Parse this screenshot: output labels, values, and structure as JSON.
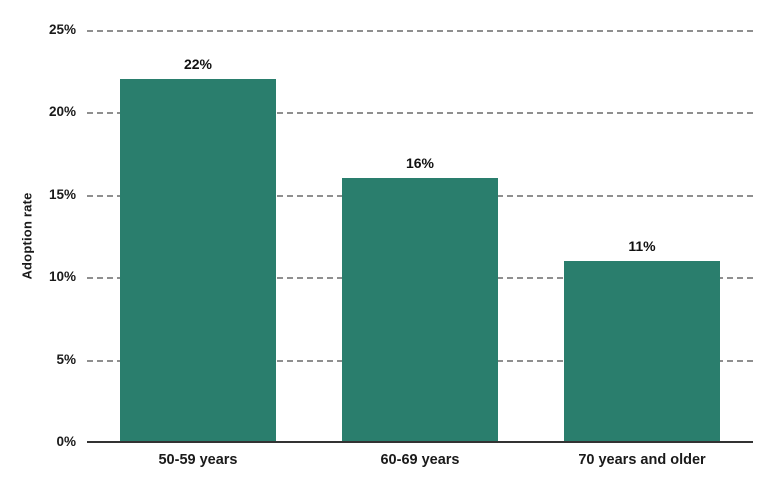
{
  "chart_data": {
    "type": "bar",
    "categories": [
      "50-59 years",
      "60-69 years",
      "70 years and older"
    ],
    "values": [
      22,
      16,
      11
    ],
    "value_labels": [
      "22%",
      "16%",
      "11%"
    ],
    "title": "",
    "xlabel": "",
    "ylabel": "Adoption rate",
    "ylim": [
      0,
      25
    ],
    "yticks": [
      0,
      5,
      10,
      15,
      20,
      25
    ],
    "ytick_labels": [
      "0%",
      "5%",
      "10%",
      "15%",
      "20%",
      "25%"
    ],
    "grid": "horizontal-dashed",
    "legend_position": "none"
  },
  "colors": {
    "bar": "#2A7E6D",
    "gridline": "#8f8f8f",
    "axis_line": "#333333",
    "text": "#1a1a1a",
    "background": "#ffffff"
  }
}
